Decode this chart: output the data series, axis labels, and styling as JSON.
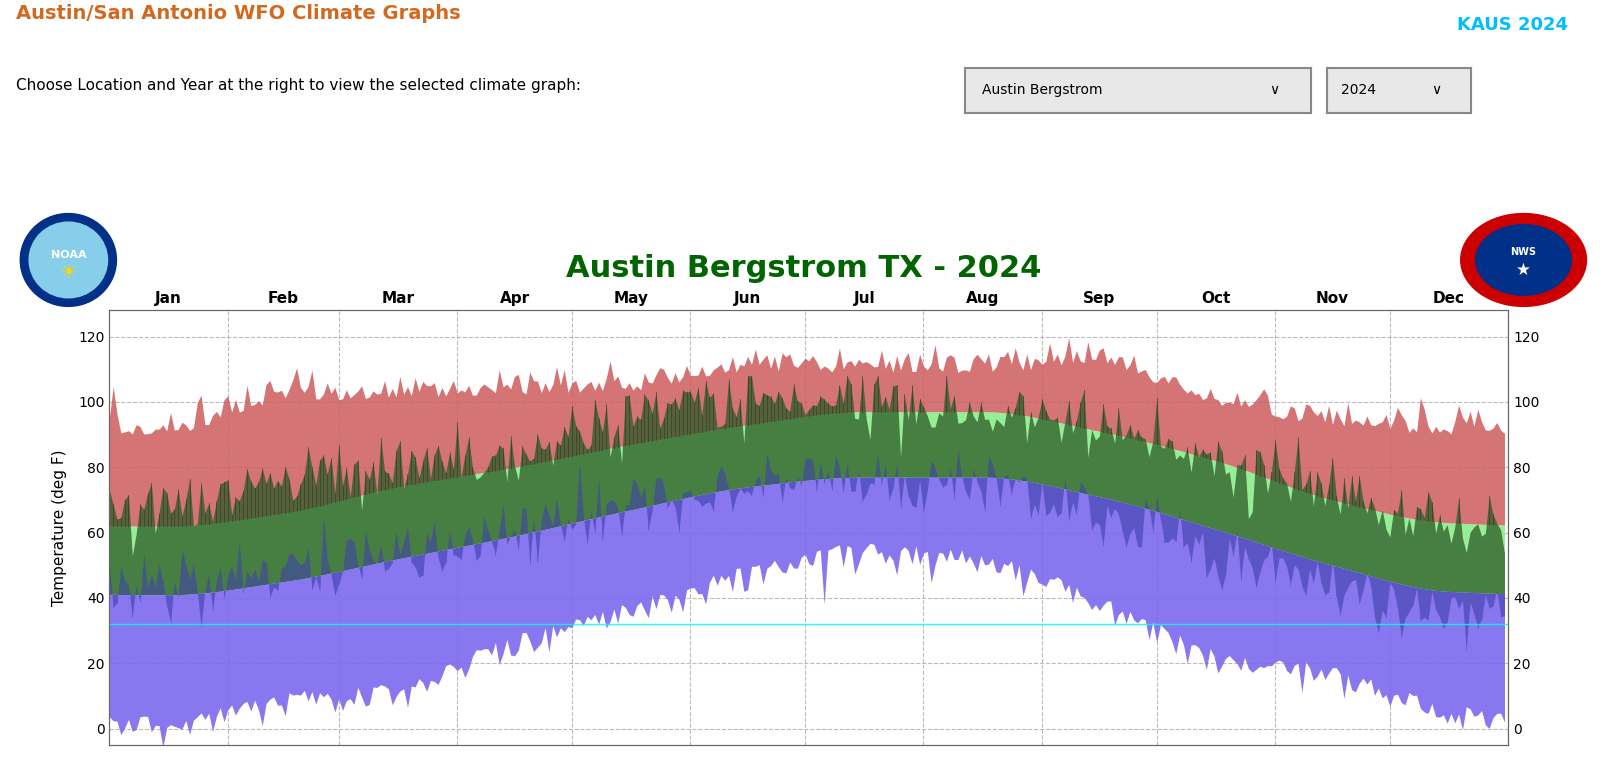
{
  "title_main": "Austin/San Antonio WFO Climate Graphs",
  "title_main_color": "#D2691E",
  "subtitle": "Choose Location and Year at the right to view the selected climate graph:",
  "chart_title": "Austin Bergstrom TX - 2024",
  "chart_title_color": "#006400",
  "kaus_label": "KAUS 2024",
  "kaus_color": "#00BFFF",
  "location_dropdown": "Austin Bergstrom",
  "year_dropdown": "2024",
  "ylabel": "Temperature (deg F)",
  "months": [
    "Jan",
    "Feb",
    "Mar",
    "Apr",
    "May",
    "Jun",
    "Jul",
    "Aug",
    "Sep",
    "Oct",
    "Nov",
    "Dec"
  ],
  "ylim": [
    -5,
    128
  ],
  "yticks": [
    0,
    20,
    40,
    60,
    80,
    100,
    120
  ],
  "grid_color": "#aaaaaa",
  "record_high_color": "#CD5C5C",
  "normal_high_color": "#90EE90",
  "actual_high_color": "#2F4F2F",
  "actual_low_color": "#6A5ACD",
  "freeze_line_color": "#00FFFF",
  "freeze_value": 32,
  "months_days": [
    31,
    29,
    31,
    30,
    31,
    30,
    31,
    31,
    30,
    31,
    30,
    31
  ],
  "normal_high_monthly": [
    62,
    66,
    74,
    80,
    87,
    93,
    97,
    97,
    91,
    82,
    70,
    63
  ],
  "normal_low_monthly": [
    41,
    45,
    52,
    59,
    67,
    74,
    77,
    77,
    71,
    61,
    50,
    42
  ],
  "record_high_monthly": [
    90,
    100,
    101,
    102,
    103,
    109,
    109,
    109,
    111,
    98,
    93,
    90
  ],
  "record_low_monthly": [
    4,
    11,
    15,
    29,
    39,
    50,
    57,
    54,
    41,
    25,
    19,
    8
  ],
  "actual_high_monthly": [
    68,
    76,
    80,
    84,
    95,
    100,
    100,
    98,
    93,
    84,
    74,
    62
  ],
  "actual_low_monthly": [
    44,
    48,
    53,
    61,
    68,
    74,
    75,
    75,
    65,
    54,
    45,
    35
  ]
}
